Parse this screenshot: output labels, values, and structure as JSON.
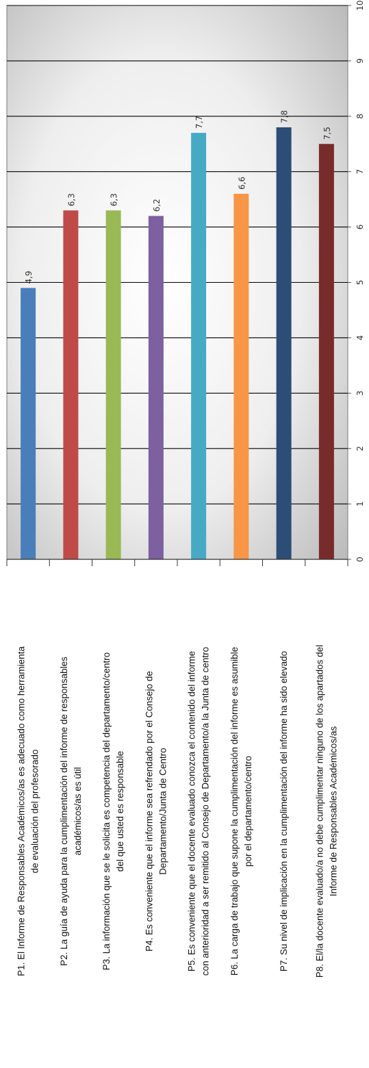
{
  "chart_data": {
    "type": "bar",
    "orientation": "horizontal",
    "categories": [
      [
        "P1. El Informe de Responsables Académicos/as es adecuado como herramienta",
        "de evaluación del profesorado"
      ],
      [
        "P2. La guía de ayuda para la cumplimentación del informe de responsables",
        "académicos/as es útil"
      ],
      [
        "P3. La información que se le solicita es competencia del departamento/centro",
        "del que usted es responsable"
      ],
      [
        "P4. Es conveniente que el informe sea refrendado por el Consejo de",
        "Departamento/Junta de Centro"
      ],
      [
        "P5. Es conveniente que el docente evaluado conozca el contenido del informe",
        "con anterioridad a ser remitido al Consejo de Departamento/a la Junta de centro"
      ],
      [
        "P6. La carga de trabajo que supone la cumplimentación del informe es asumible",
        "por el departamento/centro"
      ],
      [
        "P7. Su nivel de implicación en la cumplimentación del informe ha sido elevado"
      ],
      [
        "P8. El/la docente evaluado/a no debe cumplimentar ninguno de los apartados del",
        "Informe de Responsables Académicos/as"
      ]
    ],
    "values": [
      4.9,
      6.3,
      6.3,
      6.2,
      7.7,
      6.6,
      7.8,
      7.5
    ],
    "value_labels": [
      "4,9",
      "6,3",
      "6,3",
      "6,2",
      "7,7",
      "6,6",
      "7,8",
      "7,5"
    ],
    "colors": [
      "#4a7ebb",
      "#be4b48",
      "#98b954",
      "#7d60a0",
      "#46aac5",
      "#f79646",
      "#2c4d75",
      "#772c2a"
    ],
    "xlim": [
      0,
      10
    ],
    "ticks": [
      "0",
      "1",
      "2",
      "3",
      "4",
      "5",
      "6",
      "7",
      "8",
      "9",
      "10"
    ],
    "grid": true,
    "legend": "none"
  }
}
